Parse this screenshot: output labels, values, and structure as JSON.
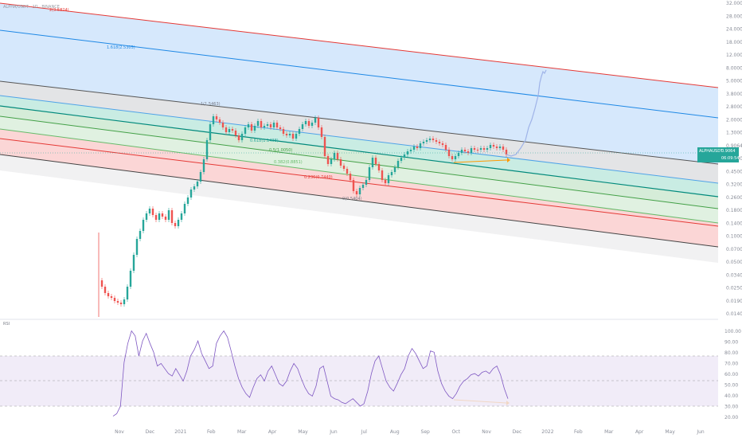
{
  "header": {
    "symbol_line": "ALPHA/USDT · 1D · BINANCE"
  },
  "price_badge": {
    "symbol": "ALPHAUSDT",
    "price": "0.9064",
    "countdown": "06:09:54",
    "bg_color": "#26a69a"
  },
  "rsi_panel": {
    "label": "RSI"
  },
  "chart_data": [
    {
      "type": "candlestick",
      "scale": "log",
      "price_ticks": [
        "32.0000",
        "28.0000",
        "24.0000",
        "18.0000",
        "12.0000",
        "8.0000",
        "5.0000",
        "3.8000",
        "2.8000",
        "2.0000",
        "1.3000",
        "0.9064",
        "0.6600",
        "0.4500",
        "0.3200",
        "0.2600",
        "0.1800",
        "0.1400",
        "0.1000",
        "0.0700",
        "0.0500",
        "0.0340",
        "0.0250",
        "0.0190",
        "0.0140"
      ],
      "time_ticks": [
        "Nov",
        "Dec",
        "2021",
        "Feb",
        "Mar",
        "Apr",
        "May",
        "Jun",
        "Jul",
        "Aug",
        "Sep",
        "Oct",
        "Nov",
        "Dec",
        "2022",
        "Feb",
        "Mar",
        "Apr",
        "May",
        "Jun"
      ],
      "fib_channel_labels": [
        {
          "label": "2(3.5824)",
          "color": "#e53935"
        },
        {
          "label": "1.618(2.5305)",
          "color": "#1e88e5"
        },
        {
          "label": "1(1.5463)",
          "color": "#787b86"
        },
        {
          "label": "0.618(1.1438)",
          "color": "#26a69a"
        },
        {
          "label": "0.5(1.0050)",
          "color": "#43a047"
        },
        {
          "label": "0.382(0.8851)",
          "color": "#66bb6a"
        },
        {
          "label": "0.236(0.7440)",
          "color": "#e53935"
        },
        {
          "label": "0(0.5404)",
          "color": "#787b86"
        }
      ],
      "last_price": 0.9064,
      "series_colors": {
        "up": "#26a69a",
        "down": "#ef5350",
        "projection": "#9fb3e8",
        "annotation": "#ff9800"
      }
    },
    {
      "type": "line",
      "panel": "rsi",
      "title": "RSI",
      "ylim": [
        20,
        100
      ],
      "y_ticks": [
        "100.00",
        "90.00",
        "80.00",
        "70.00",
        "60.00",
        "50.00",
        "40.00",
        "30.00",
        "20.00"
      ],
      "bands": {
        "upper": 70,
        "middle": 50,
        "lower": 30
      },
      "line_color": "#7e57c2",
      "values": [
        22,
        24,
        30,
        65,
        80,
        90,
        86,
        70,
        82,
        88,
        80,
        73,
        62,
        64,
        60,
        56,
        54,
        60,
        55,
        50,
        58,
        70,
        75,
        82,
        72,
        66,
        60,
        62,
        80,
        86,
        90,
        85,
        74,
        62,
        52,
        45,
        40,
        37,
        45,
        52,
        55,
        50,
        58,
        62,
        55,
        48,
        46,
        50,
        58,
        64,
        60,
        52,
        45,
        40,
        38,
        46,
        60,
        62,
        50,
        38,
        36,
        35,
        33,
        32,
        34,
        36,
        33,
        30,
        32,
        42,
        56,
        66,
        70,
        60,
        50,
        45,
        42,
        48,
        55,
        60,
        70,
        76,
        72,
        66,
        60,
        62,
        74,
        73,
        58,
        48,
        42,
        38,
        36,
        40,
        46,
        50,
        52,
        55,
        56,
        54,
        57,
        58,
        56,
        60,
        62,
        55,
        44,
        36
      ]
    }
  ]
}
